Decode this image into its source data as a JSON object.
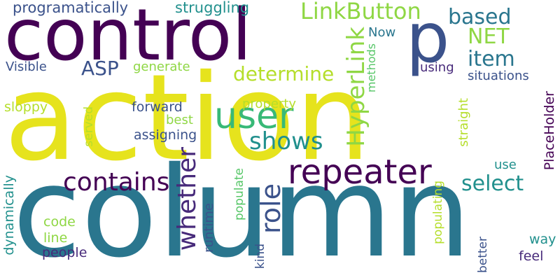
{
  "colors": {
    "background": "#ffffff",
    "palette": [
      "#e6e31d",
      "#440154",
      "#2a768e",
      "#8fd744",
      "#38b977",
      "#3b528b",
      "#472a7a",
      "#21908d",
      "#b5de2b",
      "#56c667"
    ]
  },
  "words": {
    "action": "action",
    "column": "column",
    "control": "control",
    "p": "p",
    "user": "user",
    "repeater": "repeater",
    "linkbutton": "LinkButton",
    "hyperlink": "HyperLink",
    "role": "role",
    "whether": "whether",
    "contains": "contains",
    "shows": "shows",
    "determine": "determine",
    "item": "item",
    "select": "select",
    "based": "based",
    "net": "NET",
    "asp": "ASP",
    "programatically": "programatically",
    "struggling": "struggling",
    "visible": "Visible",
    "generate": "generate",
    "now": "Now",
    "using": "using",
    "situations": "situations",
    "methods": "methods",
    "sloppy": "sloppy",
    "forward": "forward",
    "property": "property",
    "best": "best",
    "assigning": "assigning",
    "served": "served",
    "straight": "straight",
    "placeholder": "PlaceHolder",
    "use": "use",
    "runtime": "runtime",
    "populate": "populate",
    "populating": "populating",
    "dynamically": "dynamically",
    "code": "code",
    "line": "line",
    "people": "people",
    "kind": "kind",
    "better": "better",
    "way": "way",
    "feel": "feel"
  }
}
